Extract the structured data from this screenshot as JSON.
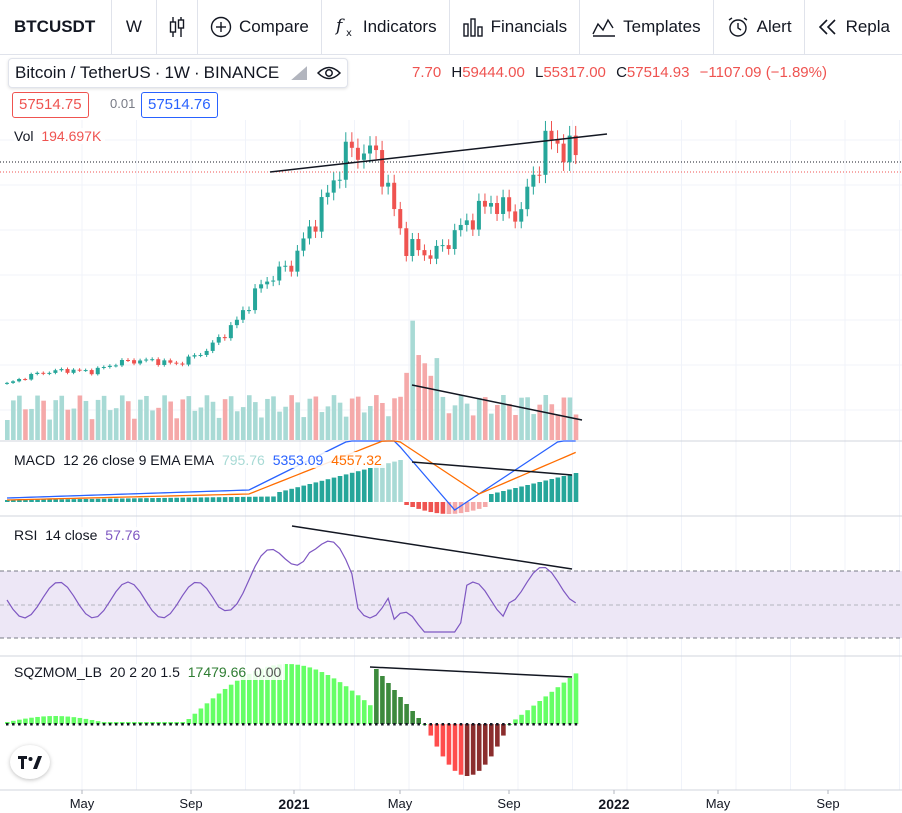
{
  "toolbar": {
    "symbol": "BTCUSDT",
    "interval": "W",
    "compare": "Compare",
    "indicators": "Indicators",
    "financials": "Financials",
    "templates": "Templates",
    "alert": "Alert",
    "replay": "Repla"
  },
  "legend": {
    "symbol_name": "Bitcoin / TetherUS",
    "sep": "·",
    "interval": "1W",
    "exchange": "BINANCE",
    "open_tail": "7.70",
    "high_key": "H",
    "high": "59444.00",
    "low_key": "L",
    "low": "55317.00",
    "close_key": "C",
    "close": "57514.93",
    "change": "−1107.09 (−1.89%)",
    "sell_price": "57514.75",
    "spread": "0.01",
    "buy_price": "57514.76"
  },
  "colors": {
    "up": "#26a69a",
    "down": "#ef5350",
    "vol_up": "#a8dad5",
    "vol_down": "#f5a9a9",
    "macd_line": "#2962ff",
    "signal_line": "#ff6d00",
    "rsi_line": "#7e57c2",
    "rsi_band": "#ede7f6",
    "sqz_light_green": "#66ff66",
    "sqz_dark_green": "#3d8a3d",
    "sqz_red": "#ff4d4d",
    "sqz_dark_red": "#8b2d2d",
    "trendline": "#131722"
  },
  "indicators": {
    "vol": {
      "name": "Vol",
      "value": "194.697K"
    },
    "macd": {
      "name": "MACD",
      "params": "12 26 close 9 EMA EMA",
      "hist": "795.76",
      "macd": "5353.09",
      "signal": "4557.32"
    },
    "rsi": {
      "name": "RSI",
      "params": "14 close",
      "value": "57.76"
    },
    "sqz": {
      "name": "SQZMOM_LB",
      "params": "20 2 20 1.5",
      "value": "17479.66",
      "zero": "0.00"
    }
  },
  "x_axis": {
    "labels": [
      {
        "text": "May",
        "date": "2020-05",
        "year": false
      },
      {
        "text": "Sep",
        "date": "2020-09",
        "year": false
      },
      {
        "text": "2021",
        "date": "2021-01",
        "year": true
      },
      {
        "text": "May",
        "date": "2021-05",
        "year": false
      },
      {
        "text": "Sep",
        "date": "2021-09",
        "year": false
      },
      {
        "text": "2022",
        "date": "2022-01",
        "year": true
      },
      {
        "text": "May",
        "date": "2022-05",
        "year": false
      },
      {
        "text": "Sep",
        "date": "2022-09",
        "year": false
      }
    ]
  },
  "chart_data": {
    "type": "line",
    "close_series": [
      {
        "date": "2020-03",
        "close": 6400
      },
      {
        "date": "2020-04",
        "close": 8600
      },
      {
        "date": "2020-05",
        "close": 9450
      },
      {
        "date": "2020-06",
        "close": 9150
      },
      {
        "date": "2020-07",
        "close": 11300
      },
      {
        "date": "2020-08",
        "close": 11650
      },
      {
        "date": "2020-09",
        "close": 10800
      },
      {
        "date": "2020-10",
        "close": 13800
      },
      {
        "date": "2020-11",
        "close": 19700
      },
      {
        "date": "2020-12",
        "close": 29000
      },
      {
        "date": "2021-01",
        "close": 33100
      },
      {
        "date": "2021-02",
        "close": 45100
      },
      {
        "date": "2021-03",
        "close": 58800
      },
      {
        "date": "2021-04",
        "close": 57700
      },
      {
        "date": "2021-05",
        "close": 37300
      },
      {
        "date": "2021-06",
        "close": 35000
      },
      {
        "date": "2021-07",
        "close": 41500
      },
      {
        "date": "2021-08",
        "close": 47100
      },
      {
        "date": "2021-09",
        "close": 43800
      },
      {
        "date": "2021-10",
        "close": 61300
      },
      {
        "date": "2021-11",
        "close": 57514.93
      }
    ]
  }
}
